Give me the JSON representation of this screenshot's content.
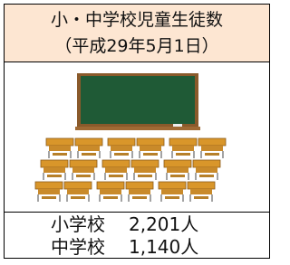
{
  "header": {
    "title": "小・中学校児童生徒数",
    "subtitle": "（平成29年5月1日）"
  },
  "rows": [
    {
      "label": "小学校",
      "count": "2,201人"
    },
    {
      "label": "中学校",
      "count": "1,140人"
    }
  ]
}
